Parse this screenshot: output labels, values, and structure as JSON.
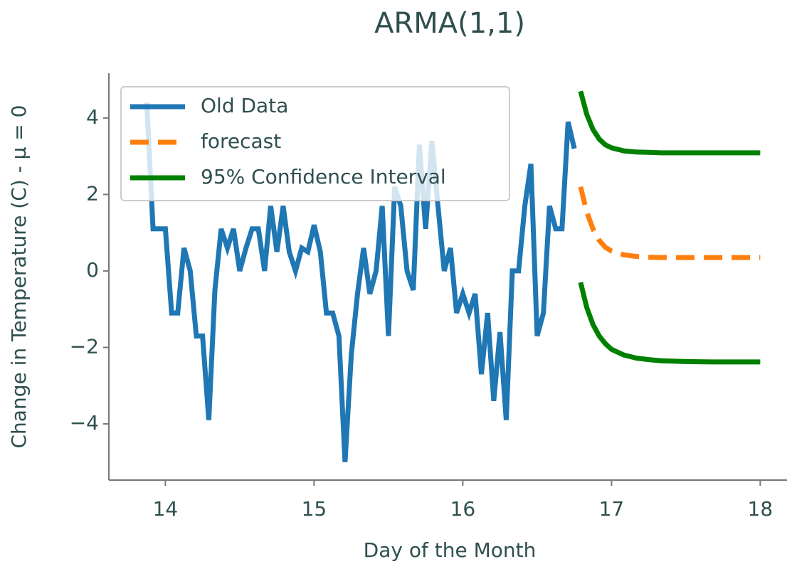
{
  "chart_data": {
    "type": "line",
    "title": "ARMA(1,1)",
    "xlabel": "Day of the Month",
    "ylabel": "Change in Temperature (C) - μ = 0",
    "xlim": [
      13.62,
      18.18
    ],
    "ylim": [
      -5.47,
      5.17
    ],
    "xticks": [
      14,
      15,
      16,
      17,
      18
    ],
    "yticks": [
      {
        "value": -4,
        "label": "−4"
      },
      {
        "value": -2,
        "label": "−2"
      },
      0,
      2,
      4
    ],
    "legend": "upper left",
    "grid": false,
    "series": [
      {
        "name": "Old Data",
        "color": "#1f77b4",
        "style": "solid",
        "x": [
          13.875,
          13.917,
          13.958,
          14.0,
          14.042,
          14.083,
          14.125,
          14.167,
          14.208,
          14.25,
          14.292,
          14.333,
          14.375,
          14.417,
          14.458,
          14.5,
          14.542,
          14.583,
          14.625,
          14.667,
          14.708,
          14.75,
          14.792,
          14.833,
          14.875,
          14.917,
          14.958,
          15.0,
          15.042,
          15.083,
          15.125,
          15.167,
          15.208,
          15.25,
          15.292,
          15.333,
          15.375,
          15.417,
          15.458,
          15.5,
          15.542,
          15.583,
          15.625,
          15.667,
          15.708,
          15.75,
          15.792,
          15.833,
          15.875,
          15.917,
          15.958,
          16.0,
          16.042,
          16.083,
          16.125,
          16.167,
          16.208,
          16.25,
          16.292,
          16.333,
          16.375,
          16.417,
          16.458,
          16.5,
          16.542,
          16.583,
          16.625,
          16.667,
          16.708,
          16.75
        ],
        "values": [
          4.4,
          1.1,
          1.1,
          1.1,
          -1.1,
          -1.1,
          0.6,
          0,
          -1.7,
          -1.7,
          -3.9,
          -0.5,
          1.1,
          0.6,
          1.1,
          0,
          0.6,
          1.1,
          1.1,
          0,
          1.7,
          0.5,
          1.7,
          0.5,
          0,
          0.6,
          0.5,
          1.2,
          0.5,
          -1.1,
          -1.1,
          -1.7,
          -5.0,
          -2.2,
          -0.6,
          0.6,
          -0.6,
          0,
          1.7,
          -1.7,
          2.2,
          1.7,
          0,
          -0.5,
          3.3,
          1.1,
          3.4,
          1.7,
          0,
          0.6,
          -1.1,
          -0.6,
          -1.1,
          -0.6,
          -2.7,
          -1.1,
          -3.4,
          -1.6,
          -3.9,
          0,
          0,
          1.7,
          2.8,
          -1.7,
          -1.1,
          1.7,
          1.1,
          1.1,
          3.9,
          3.2
        ]
      },
      {
        "name": "forecast",
        "color": "#ff7f0e",
        "style": "dashed",
        "x": [
          16.792,
          16.833,
          16.875,
          16.917,
          16.958,
          17.0,
          17.083,
          17.167,
          17.25,
          17.333,
          17.5,
          17.667,
          17.833,
          18.0
        ],
        "values": [
          2.2,
          1.55,
          1.1,
          0.8,
          0.62,
          0.52,
          0.42,
          0.38,
          0.36,
          0.35,
          0.35,
          0.35,
          0.35,
          0.35
        ]
      },
      {
        "name": "95% Confidence Interval",
        "color": "#008000",
        "style": "solid",
        "x": [
          16.792,
          16.833,
          16.875,
          16.917,
          16.958,
          17.0,
          17.083,
          17.167,
          17.25,
          17.333,
          17.5,
          17.667,
          17.833,
          18.0
        ],
        "values": [
          4.7,
          4.1,
          3.7,
          3.45,
          3.3,
          3.22,
          3.14,
          3.11,
          3.1,
          3.09,
          3.09,
          3.09,
          3.09,
          3.09
        ],
        "lower_values": [
          -0.3,
          -0.95,
          -1.4,
          -1.7,
          -1.9,
          -2.05,
          -2.2,
          -2.28,
          -2.32,
          -2.35,
          -2.37,
          -2.38,
          -2.38,
          -2.38
        ]
      }
    ]
  }
}
